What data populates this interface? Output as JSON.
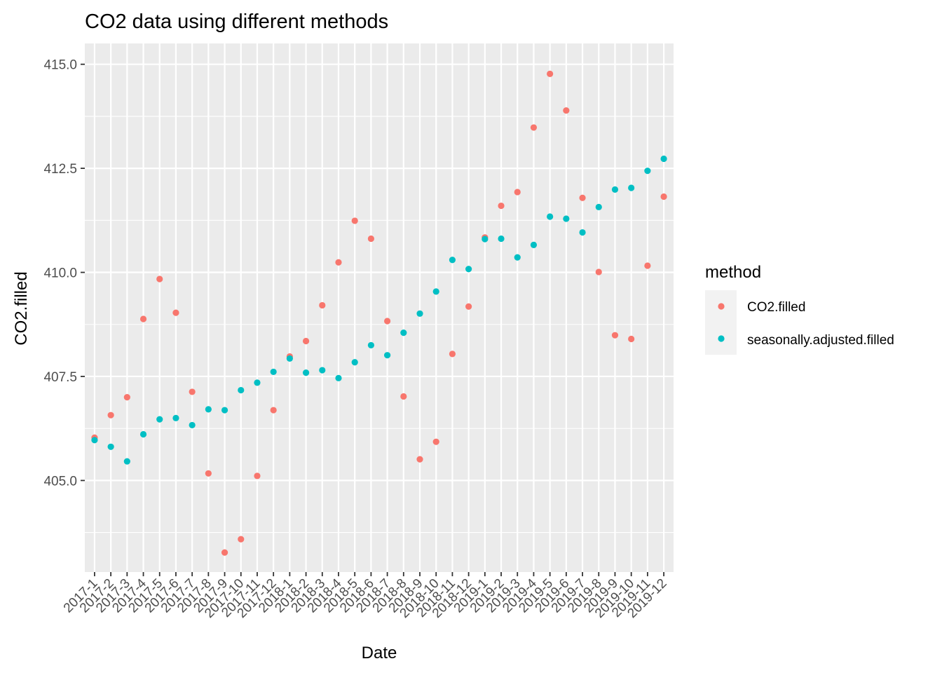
{
  "chart_data": {
    "type": "scatter",
    "title": "CO2 data using different methods",
    "xlabel": "Date",
    "ylabel": "CO2.filled",
    "categories": [
      "2017-1",
      "2017-2",
      "2017-3",
      "2017-4",
      "2017-5",
      "2017-6",
      "2017-7",
      "2017-8",
      "2017-9",
      "2017-10",
      "2017-11",
      "2017-12",
      "2018-1",
      "2018-2",
      "2018-3",
      "2018-4",
      "2018-5",
      "2018-6",
      "2018-7",
      "2018-8",
      "2018-9",
      "2018-10",
      "2018-11",
      "2018-12",
      "2019-1",
      "2019-2",
      "2019-3",
      "2019-4",
      "2019-5",
      "2019-6",
      "2019-7",
      "2019-8",
      "2019-9",
      "2019-10",
      "2019-11",
      "2019-12"
    ],
    "ylim": [
      402.8,
      415.5
    ],
    "y_ticks": [
      405.0,
      407.5,
      410.0,
      412.5,
      415.0
    ],
    "y_tick_labels": [
      "405.0",
      "407.5",
      "410.0",
      "412.5",
      "415.0"
    ],
    "grid": true,
    "legend": {
      "title": "method",
      "position": "right"
    },
    "series": [
      {
        "name": "CO2.filled",
        "color": "#F8766D",
        "values": [
          406.03,
          406.57,
          407.0,
          408.88,
          409.84,
          409.03,
          407.13,
          405.17,
          403.27,
          403.59,
          405.11,
          406.69,
          407.98,
          408.35,
          409.21,
          410.24,
          411.24,
          410.81,
          408.83,
          407.02,
          405.51,
          405.93,
          408.04,
          409.18,
          410.84,
          411.6,
          411.93,
          413.48,
          414.77,
          413.89,
          411.79,
          410.01,
          408.49,
          408.4,
          410.16,
          411.82
        ]
      },
      {
        "name": "seasonally.adjusted.filled",
        "color": "#00BFC4",
        "values": [
          405.97,
          405.81,
          405.46,
          406.11,
          406.47,
          406.5,
          406.33,
          406.71,
          406.69,
          407.17,
          407.35,
          407.61,
          407.93,
          407.59,
          407.65,
          407.46,
          407.84,
          408.25,
          408.01,
          408.55,
          409.01,
          409.54,
          410.3,
          410.08,
          410.8,
          410.81,
          410.36,
          410.66,
          411.34,
          411.29,
          410.96,
          411.57,
          411.99,
          412.03,
          412.44,
          412.73
        ]
      }
    ]
  }
}
